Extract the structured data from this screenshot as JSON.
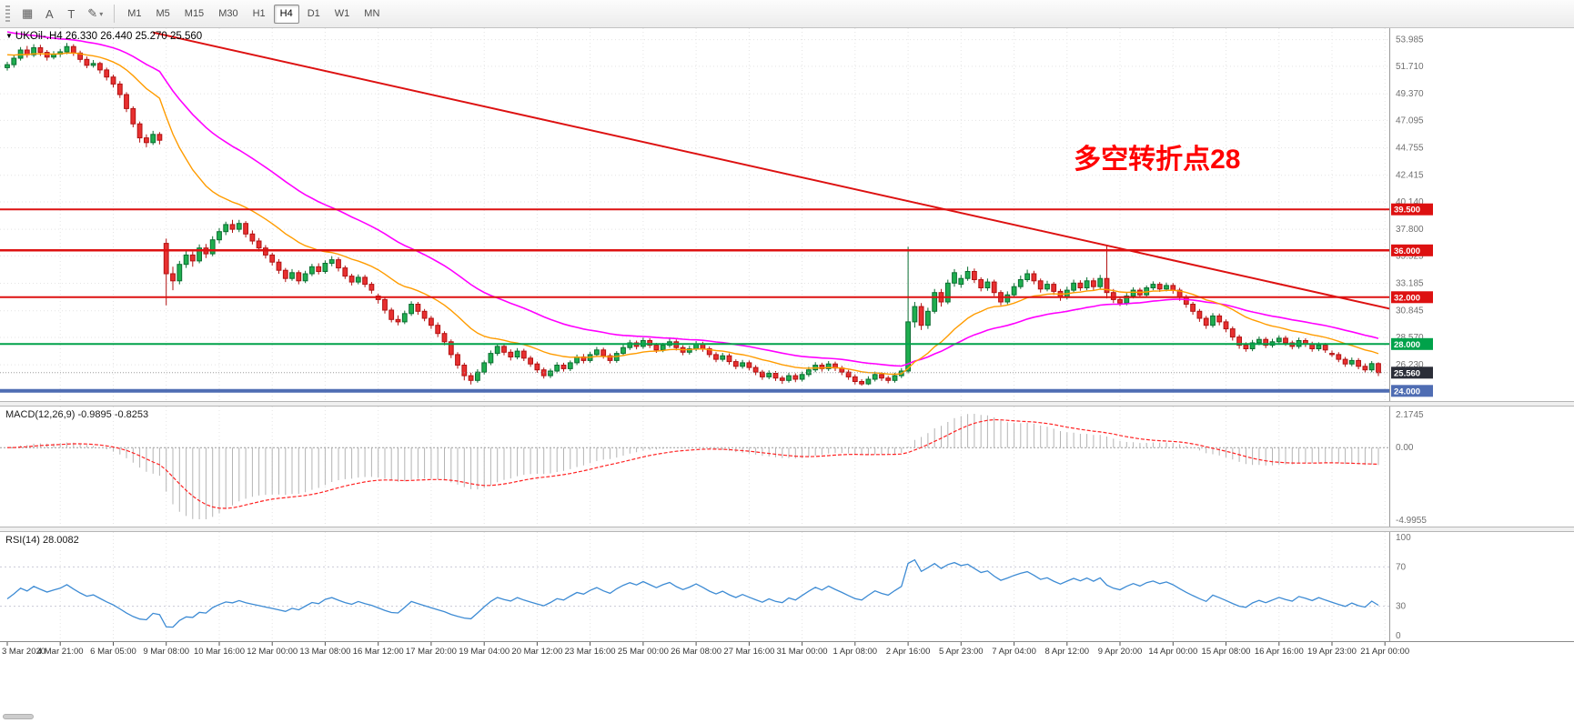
{
  "toolbar": {
    "tools": [
      {
        "name": "chart-objects-icon",
        "glyph": "▦"
      },
      {
        "name": "text-label-icon",
        "glyph": "A"
      },
      {
        "name": "text-box-icon",
        "glyph": "T"
      },
      {
        "name": "draw-tools-icon",
        "glyph": "✎",
        "caret": true
      }
    ],
    "caret_glyph": "▾",
    "timeframes": [
      "M1",
      "M5",
      "M15",
      "M30",
      "H1",
      "H4",
      "D1",
      "W1",
      "MN"
    ],
    "active_timeframe": "H4"
  },
  "chart_data": {
    "type": "candlestick",
    "symbol_line": {
      "dropdown_glyph": "▼",
      "text": "UKOil-.H4  26.330 26.440 25.270 25.560"
    },
    "timeframe": "H4",
    "annotation": {
      "text": "多空转折点28",
      "color": "#ff0000",
      "index": 161,
      "price": 43.0,
      "font_size": 30
    },
    "price_axis": {
      "min": 23.6,
      "max": 54.5,
      "grid_labels": [
        53.985,
        51.71,
        49.37,
        47.095,
        44.755,
        42.415,
        40.14,
        37.8,
        35.525,
        33.185,
        30.845,
        28.57,
        26.23
      ],
      "badges": [
        {
          "text": "39.500",
          "value": 39.5,
          "color": "#dd1111"
        },
        {
          "text": "36.000",
          "value": 36.0,
          "color": "#dd1111"
        },
        {
          "text": "32.000",
          "value": 32.0,
          "color": "#dd1111"
        },
        {
          "text": "28.000",
          "value": 28.0,
          "color": "#00a24a"
        },
        {
          "text": "25.560",
          "value": 25.56,
          "color": "#2b2e38"
        },
        {
          "text": "24.000",
          "value": 24.0,
          "color": "#4f6db3"
        }
      ]
    },
    "hlines": [
      {
        "value": 39.5,
        "color": "#dd1111",
        "width": 2
      },
      {
        "value": 36.0,
        "color": "#dd1111",
        "width": 2.5
      },
      {
        "value": 32.0,
        "color": "#dd1111",
        "width": 2
      },
      {
        "value": 28.0,
        "color": "#00a24a",
        "width": 2
      },
      {
        "value": 24.0,
        "color": "#4f6db3",
        "width": 4
      }
    ],
    "trendline": {
      "color": "#dd1111",
      "width": 2,
      "from": {
        "index": 22,
        "price": 54.6
      },
      "to": {
        "index": 212,
        "price": 30.6
      }
    },
    "moving_averages": [
      {
        "name": "fast",
        "period": 18,
        "seed": 52.8,
        "color": "#ff9c00"
      },
      {
        "name": "slow",
        "period": 40,
        "seed": 54.8,
        "color": "#ff00ff"
      }
    ],
    "time_labels": [
      "3 Mar 2020",
      "4 Mar 21:00",
      "6 Mar 05:00",
      "9 Mar 08:00",
      "10 Mar 16:00",
      "12 Mar 00:00",
      "13 Mar 08:00",
      "16 Mar 12:00",
      "17 Mar 20:00",
      "19 Mar 04:00",
      "20 Mar 12:00",
      "23 Mar 16:00",
      "25 Mar 00:00",
      "26 Mar 08:00",
      "27 Mar 16:00",
      "31 Mar 00:00",
      "1 Apr 08:00",
      "2 Apr 16:00",
      "5 Apr 23:00",
      "7 Apr 04:00",
      "8 Apr 12:00",
      "9 Apr 20:00",
      "14 Apr 00:00",
      "15 Apr 08:00",
      "16 Apr 16:00",
      "19 Apr 23:00",
      "21 Apr 00:00"
    ],
    "candles": [
      [
        51.6,
        52.1,
        51.35,
        51.85
      ],
      [
        51.85,
        52.65,
        51.6,
        52.4
      ],
      [
        52.4,
        53.35,
        52.2,
        53.1
      ],
      [
        53.1,
        53.45,
        52.45,
        52.7
      ],
      [
        52.7,
        53.6,
        52.5,
        53.3
      ],
      [
        53.3,
        53.55,
        52.6,
        52.9
      ],
      [
        52.9,
        53.1,
        52.2,
        52.5
      ],
      [
        52.5,
        53.0,
        52.3,
        52.75
      ],
      [
        52.75,
        53.2,
        52.5,
        52.95
      ],
      [
        52.95,
        53.7,
        52.75,
        53.4
      ],
      [
        53.4,
        53.6,
        52.6,
        52.85
      ],
      [
        52.85,
        53.05,
        52.05,
        52.3
      ],
      [
        52.3,
        52.55,
        51.55,
        51.8
      ],
      [
        51.8,
        52.25,
        51.6,
        51.95
      ],
      [
        51.95,
        52.1,
        51.1,
        51.4
      ],
      [
        51.4,
        51.6,
        50.5,
        50.8
      ],
      [
        50.8,
        51.0,
        49.9,
        50.2
      ],
      [
        50.2,
        50.45,
        49.0,
        49.3
      ],
      [
        49.3,
        49.5,
        47.8,
        48.1
      ],
      [
        48.1,
        48.3,
        46.5,
        46.8
      ],
      [
        46.8,
        47.0,
        45.2,
        45.6
      ],
      [
        45.6,
        45.9,
        44.8,
        45.2
      ],
      [
        45.2,
        46.2,
        45.0,
        45.9
      ],
      [
        45.9,
        46.1,
        45.05,
        45.4
      ],
      [
        36.6,
        37.0,
        31.3,
        34.0
      ],
      [
        34.0,
        34.6,
        32.6,
        33.4
      ],
      [
        33.4,
        35.1,
        33.1,
        34.8
      ],
      [
        34.8,
        35.95,
        34.5,
        35.6
      ],
      [
        35.6,
        35.9,
        34.6,
        35.1
      ],
      [
        35.1,
        36.5,
        34.9,
        36.2
      ],
      [
        36.2,
        36.55,
        35.35,
        35.7
      ],
      [
        35.7,
        37.2,
        35.5,
        36.9
      ],
      [
        36.9,
        37.9,
        36.6,
        37.6
      ],
      [
        37.6,
        38.45,
        37.3,
        38.2
      ],
      [
        38.2,
        38.6,
        37.5,
        37.8
      ],
      [
        37.8,
        38.6,
        37.55,
        38.3
      ],
      [
        38.3,
        38.5,
        37.1,
        37.4
      ],
      [
        37.4,
        37.7,
        36.5,
        36.8
      ],
      [
        36.8,
        37.05,
        35.9,
        36.2
      ],
      [
        36.2,
        36.45,
        35.3,
        35.6
      ],
      [
        35.6,
        35.8,
        34.7,
        35.0
      ],
      [
        35.0,
        35.25,
        34.0,
        34.3
      ],
      [
        34.3,
        34.5,
        33.3,
        33.6
      ],
      [
        33.6,
        34.4,
        33.4,
        34.1
      ],
      [
        34.1,
        34.3,
        33.1,
        33.4
      ],
      [
        33.4,
        34.25,
        33.2,
        34.0
      ],
      [
        34.0,
        34.85,
        33.8,
        34.6
      ],
      [
        34.6,
        34.9,
        33.95,
        34.2
      ],
      [
        34.2,
        35.15,
        34.0,
        34.9
      ],
      [
        34.9,
        35.5,
        34.65,
        35.2
      ],
      [
        35.2,
        35.4,
        34.2,
        34.5
      ],
      [
        34.5,
        34.7,
        33.55,
        33.8
      ],
      [
        33.8,
        34.0,
        33.0,
        33.3
      ],
      [
        33.3,
        33.95,
        33.1,
        33.7
      ],
      [
        33.7,
        33.9,
        32.85,
        33.1
      ],
      [
        33.1,
        33.3,
        32.3,
        32.6
      ],
      [
        32.1,
        32.3,
        31.45,
        31.8
      ],
      [
        31.8,
        32.0,
        30.6,
        30.9
      ],
      [
        30.9,
        31.1,
        29.85,
        30.1
      ],
      [
        30.1,
        30.45,
        29.6,
        29.9
      ],
      [
        29.9,
        30.85,
        29.7,
        30.6
      ],
      [
        30.6,
        31.65,
        30.4,
        31.4
      ],
      [
        31.4,
        31.6,
        30.5,
        30.8
      ],
      [
        30.8,
        31.0,
        29.95,
        30.2
      ],
      [
        30.2,
        30.4,
        29.3,
        29.6
      ],
      [
        29.6,
        29.85,
        28.6,
        28.9
      ],
      [
        28.9,
        29.1,
        27.9,
        28.2
      ],
      [
        28.2,
        28.4,
        26.8,
        27.1
      ],
      [
        27.1,
        27.3,
        25.9,
        26.2
      ],
      [
        26.2,
        26.4,
        24.9,
        25.3
      ],
      [
        25.3,
        25.55,
        24.55,
        24.9
      ],
      [
        24.9,
        25.85,
        24.7,
        25.6
      ],
      [
        25.6,
        26.6,
        25.4,
        26.4
      ],
      [
        26.4,
        27.45,
        26.2,
        27.2
      ],
      [
        27.2,
        28.0,
        27.0,
        27.8
      ],
      [
        27.8,
        28.05,
        27.05,
        27.3
      ],
      [
        27.3,
        27.55,
        26.6,
        26.9
      ],
      [
        26.9,
        27.65,
        26.7,
        27.4
      ],
      [
        27.4,
        27.6,
        26.55,
        26.8
      ],
      [
        26.8,
        27.0,
        26.05,
        26.3
      ],
      [
        26.3,
        26.5,
        25.55,
        25.8
      ],
      [
        25.8,
        26.0,
        25.05,
        25.3
      ],
      [
        25.3,
        25.9,
        25.1,
        25.7
      ],
      [
        25.7,
        26.45,
        25.5,
        26.2
      ],
      [
        26.2,
        26.4,
        25.65,
        25.9
      ],
      [
        25.9,
        26.6,
        25.7,
        26.4
      ],
      [
        26.4,
        27.1,
        26.2,
        26.9
      ],
      [
        26.9,
        27.15,
        26.35,
        26.6
      ],
      [
        26.6,
        27.35,
        26.4,
        27.1
      ],
      [
        27.1,
        27.75,
        26.9,
        27.5
      ],
      [
        27.5,
        27.7,
        26.75,
        27.0
      ],
      [
        27.0,
        27.2,
        26.35,
        26.6
      ],
      [
        26.6,
        27.4,
        26.4,
        27.2
      ],
      [
        27.2,
        27.95,
        27.0,
        27.7
      ],
      [
        27.7,
        28.35,
        27.5,
        28.1
      ],
      [
        28.1,
        28.3,
        27.55,
        27.8
      ],
      [
        27.8,
        28.55,
        27.6,
        28.3
      ],
      [
        28.3,
        28.5,
        27.65,
        27.9
      ],
      [
        27.9,
        28.1,
        27.25,
        27.5
      ],
      [
        27.5,
        28.1,
        27.3,
        27.9
      ],
      [
        27.9,
        28.45,
        27.7,
        28.2
      ],
      [
        28.2,
        28.4,
        27.45,
        27.7
      ],
      [
        27.7,
        27.9,
        27.05,
        27.3
      ],
      [
        27.3,
        27.85,
        27.1,
        27.6
      ],
      [
        27.6,
        28.25,
        27.4,
        28.0
      ],
      [
        28.0,
        28.2,
        27.35,
        27.6
      ],
      [
        27.6,
        27.8,
        26.85,
        27.1
      ],
      [
        27.1,
        27.3,
        26.45,
        26.7
      ],
      [
        26.7,
        27.25,
        26.5,
        27.0
      ],
      [
        27.0,
        27.2,
        26.25,
        26.5
      ],
      [
        26.5,
        26.7,
        25.85,
        26.1
      ],
      [
        26.1,
        26.65,
        25.9,
        26.4
      ],
      [
        26.4,
        26.6,
        25.75,
        26.0
      ],
      [
        26.0,
        26.2,
        25.35,
        25.6
      ],
      [
        25.6,
        25.8,
        24.95,
        25.2
      ],
      [
        25.2,
        25.75,
        25.0,
        25.5
      ],
      [
        25.5,
        25.7,
        24.85,
        25.1
      ],
      [
        25.1,
        25.3,
        24.6,
        24.9
      ],
      [
        24.9,
        25.55,
        24.7,
        25.3
      ],
      [
        25.3,
        25.5,
        24.75,
        25.0
      ],
      [
        25.0,
        25.65,
        24.8,
        25.4
      ],
      [
        25.4,
        26.05,
        25.2,
        25.8
      ],
      [
        25.8,
        26.45,
        25.6,
        26.2
      ],
      [
        26.2,
        26.4,
        25.65,
        25.9
      ],
      [
        25.9,
        26.55,
        25.7,
        26.3
      ],
      [
        26.3,
        26.5,
        25.7,
        25.95
      ],
      [
        25.95,
        26.15,
        25.35,
        25.6
      ],
      [
        25.6,
        25.8,
        24.95,
        25.2
      ],
      [
        25.2,
        25.4,
        24.55,
        24.8
      ],
      [
        24.8,
        25.0,
        24.45,
        24.6
      ],
      [
        24.6,
        25.25,
        24.5,
        25.0
      ],
      [
        25.0,
        25.65,
        24.8,
        25.4
      ],
      [
        25.4,
        25.6,
        24.85,
        25.1
      ],
      [
        25.1,
        25.3,
        24.65,
        24.9
      ],
      [
        24.9,
        25.55,
        24.7,
        25.3
      ],
      [
        25.3,
        25.95,
        25.1,
        25.7
      ],
      [
        25.7,
        36.3,
        25.5,
        29.9
      ],
      [
        29.9,
        31.6,
        29.4,
        31.2
      ],
      [
        31.2,
        31.5,
        29.2,
        29.6
      ],
      [
        29.6,
        31.1,
        29.3,
        30.8
      ],
      [
        30.8,
        32.7,
        30.6,
        32.4
      ],
      [
        32.4,
        32.7,
        31.2,
        31.6
      ],
      [
        31.6,
        33.5,
        31.4,
        33.2
      ],
      [
        33.2,
        34.4,
        32.9,
        34.1
      ],
      [
        33.1,
        33.9,
        32.8,
        33.6
      ],
      [
        33.6,
        34.6,
        33.4,
        34.2
      ],
      [
        34.2,
        34.45,
        33.2,
        33.5
      ],
      [
        33.5,
        33.7,
        32.5,
        32.8
      ],
      [
        32.8,
        33.6,
        32.55,
        33.3
      ],
      [
        33.3,
        33.5,
        32.1,
        32.4
      ],
      [
        32.4,
        32.6,
        31.3,
        31.6
      ],
      [
        31.6,
        32.5,
        31.4,
        32.2
      ],
      [
        32.2,
        33.2,
        32.0,
        32.9
      ],
      [
        32.9,
        33.85,
        32.7,
        33.5
      ],
      [
        33.5,
        34.35,
        33.3,
        34.0
      ],
      [
        34.0,
        34.25,
        33.1,
        33.4
      ],
      [
        33.4,
        33.6,
        32.4,
        32.7
      ],
      [
        32.7,
        33.4,
        32.5,
        33.1
      ],
      [
        33.1,
        33.3,
        32.2,
        32.5
      ],
      [
        32.5,
        32.7,
        31.7,
        32.0
      ],
      [
        32.0,
        32.9,
        31.8,
        32.6
      ],
      [
        32.6,
        33.5,
        32.4,
        33.2
      ],
      [
        33.2,
        33.45,
        32.55,
        32.8
      ],
      [
        32.8,
        33.7,
        32.6,
        33.4
      ],
      [
        33.4,
        33.65,
        32.6,
        32.9
      ],
      [
        32.9,
        33.9,
        32.7,
        33.6
      ],
      [
        33.6,
        36.4,
        31.9,
        32.4
      ],
      [
        32.4,
        32.7,
        31.5,
        31.8
      ],
      [
        31.8,
        32.05,
        31.25,
        31.5
      ],
      [
        31.5,
        32.35,
        31.3,
        32.1
      ],
      [
        32.1,
        32.85,
        31.9,
        32.6
      ],
      [
        32.6,
        32.8,
        31.95,
        32.2
      ],
      [
        32.2,
        33.0,
        32.0,
        32.8
      ],
      [
        32.8,
        33.35,
        32.6,
        33.1
      ],
      [
        33.1,
        33.3,
        32.45,
        32.7
      ],
      [
        32.7,
        33.25,
        32.5,
        33.0
      ],
      [
        33.0,
        33.2,
        32.3,
        32.6
      ],
      [
        32.6,
        32.8,
        31.7,
        32.0
      ],
      [
        32.0,
        32.2,
        31.1,
        31.4
      ],
      [
        31.4,
        31.6,
        30.5,
        30.8
      ],
      [
        30.8,
        31.0,
        29.9,
        30.2
      ],
      [
        30.2,
        30.4,
        29.3,
        29.6
      ],
      [
        29.6,
        30.65,
        29.4,
        30.4
      ],
      [
        30.4,
        30.6,
        29.6,
        29.9
      ],
      [
        29.9,
        30.1,
        29.0,
        29.3
      ],
      [
        29.3,
        29.5,
        28.3,
        28.6
      ],
      [
        28.6,
        28.8,
        27.6,
        27.9
      ],
      [
        27.9,
        28.15,
        27.35,
        27.6
      ],
      [
        27.6,
        28.35,
        27.4,
        28.1
      ],
      [
        28.1,
        28.65,
        27.9,
        28.4
      ],
      [
        28.4,
        28.6,
        27.65,
        27.9
      ],
      [
        27.9,
        28.45,
        27.7,
        28.2
      ],
      [
        28.2,
        28.75,
        28.0,
        28.5
      ],
      [
        28.5,
        28.7,
        27.85,
        28.1
      ],
      [
        28.1,
        28.3,
        27.55,
        27.8
      ],
      [
        27.8,
        28.55,
        27.6,
        28.3
      ],
      [
        28.3,
        28.5,
        27.75,
        28.0
      ],
      [
        28.0,
        28.2,
        27.35,
        27.6
      ],
      [
        27.6,
        28.15,
        27.4,
        27.9
      ],
      [
        27.9,
        28.1,
        27.25,
        27.5
      ],
      [
        27.2,
        27.45,
        26.9,
        27.1
      ],
      [
        27.1,
        27.3,
        26.45,
        26.7
      ],
      [
        26.7,
        26.9,
        26.05,
        26.3
      ],
      [
        26.3,
        26.85,
        26.1,
        26.6
      ],
      [
        26.6,
        26.8,
        25.85,
        26.1
      ],
      [
        26.1,
        26.35,
        25.55,
        25.8
      ],
      [
        25.8,
        26.55,
        25.6,
        26.33
      ],
      [
        26.33,
        26.44,
        25.27,
        25.56
      ]
    ],
    "macd": {
      "label": "MACD(12,26,9) -0.9895 -0.8253",
      "fast": 12,
      "slow": 26,
      "signal_period": 9,
      "axis_top": "2.1745",
      "axis_zero": "0.00",
      "axis_bottom": "-4.9955",
      "hist_color": "#b4b4b4",
      "signal_color": "#ff2222"
    },
    "rsi": {
      "label": "RSI(14) 28.0082",
      "period": 14,
      "levels": [
        70,
        30
      ],
      "axis_labels": [
        100,
        70,
        30,
        0
      ],
      "color": "#3d8bd4"
    }
  }
}
